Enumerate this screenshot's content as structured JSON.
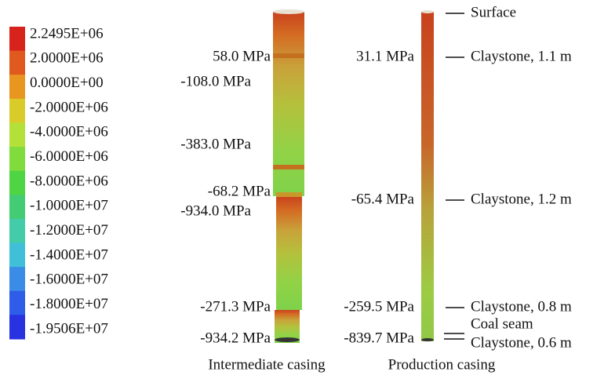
{
  "legend": {
    "labels": [
      "2.2495E+06",
      "2.0000E+06",
      "0.0000E+00",
      "-2.0000E+06",
      "-4.0000E+06",
      "-6.0000E+06",
      "-8.0000E+06",
      "-1.0000E+07",
      "-1.2000E+07",
      "-1.4000E+07",
      "-1.6000E+07",
      "-1.8000E+07",
      "-1.9506E+07"
    ],
    "colors": [
      "#d8231c",
      "#e0591f",
      "#e8961f",
      "#d9cc2a",
      "#b4e03a",
      "#7fdc3c",
      "#4fd444",
      "#44cc74",
      "#44cca8",
      "#40bfd8",
      "#3a8ce6",
      "#2f5ce8",
      "#2832e0"
    ]
  },
  "intermediate_casing": {
    "label": "Intermediate casing",
    "stresses": [
      "58.0 MPa",
      "-108.0 MPa",
      "-383.0 MPa",
      "-68.2 MPa",
      "-934.0 MPa",
      "-271.3 MPa",
      "-934.2 MPa"
    ]
  },
  "production_casing": {
    "label": "Production casing",
    "stresses": [
      "31.1 MPa",
      "-65.4 MPa",
      "-259.5 MPa",
      "-839.7 MPa"
    ]
  },
  "strata": [
    "Surface",
    "Claystone, 1.1 m",
    "Claystone, 1.2 m",
    "Claystone, 0.8 m",
    "Coal seam",
    "Claystone, 0.6 m"
  ]
}
